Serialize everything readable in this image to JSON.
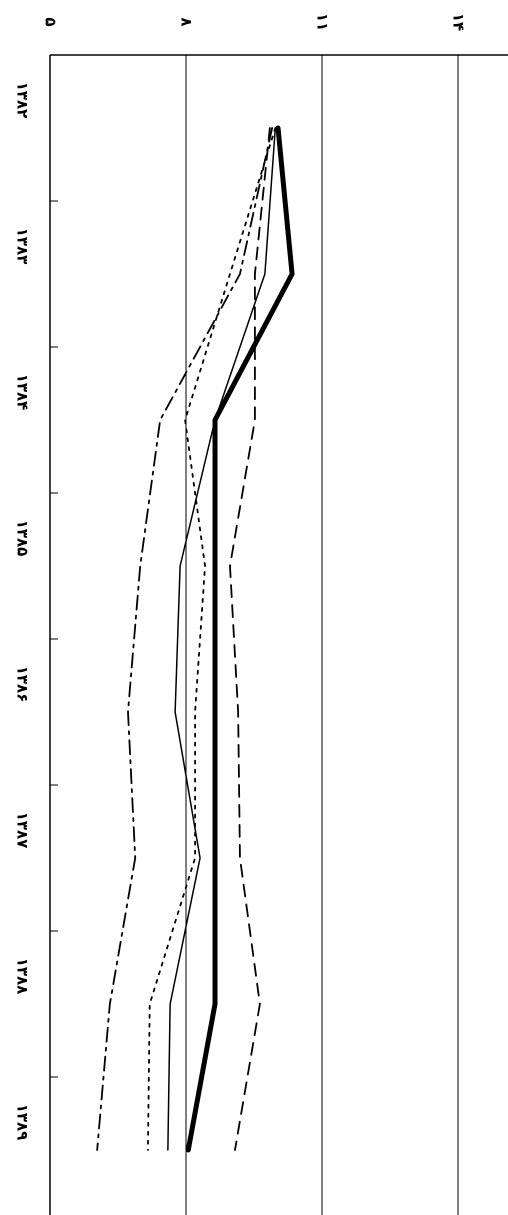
{
  "chart_data": {
    "type": "line",
    "orientation": "vertical-categories",
    "categories": [
      "۱۳۸۲",
      "۱۳۸۳",
      "۱۳۸۴",
      "۱۳۸۵",
      "۱۳۸۶",
      "۱۳۸۷",
      "۱۳۸۸",
      "۱۳۸۹"
    ],
    "series": [
      {
        "color": "#000",
        "values": [
          10.03,
          10.34,
          8.64,
          8.64,
          8.64,
          8.64,
          8.64,
          8.05
        ]
      },
      {
        "color": "#000",
        "values": [
          9.97,
          9.74,
          8.64,
          7.87,
          7.76,
          8.31,
          7.65,
          7.6
        ]
      },
      {
        "color": "#000",
        "values": [
          9.85,
          9.52,
          9.52,
          8.97,
          9.15,
          9.19,
          9.63,
          9.08
        ]
      },
      {
        "color": "#000",
        "values": [
          9.9,
          9.19,
          7.43,
          6.99,
          6.72,
          6.88,
          6.32,
          6.04
        ]
      },
      {
        "color": "#000",
        "values": [
          9.97,
          8.97,
          7.98,
          8.42,
          8.2,
          8.2,
          7.2,
          7.16
        ]
      }
    ],
    "ylim": [
      5,
      14
    ],
    "yticks": [
      {
        "value": 5,
        "label": "۵"
      },
      {
        "value": 8,
        "label": "۸"
      },
      {
        "value": 11,
        "label": "۱۱"
      },
      {
        "value": 14,
        "label": "۱۴"
      }
    ],
    "grid": true
  }
}
